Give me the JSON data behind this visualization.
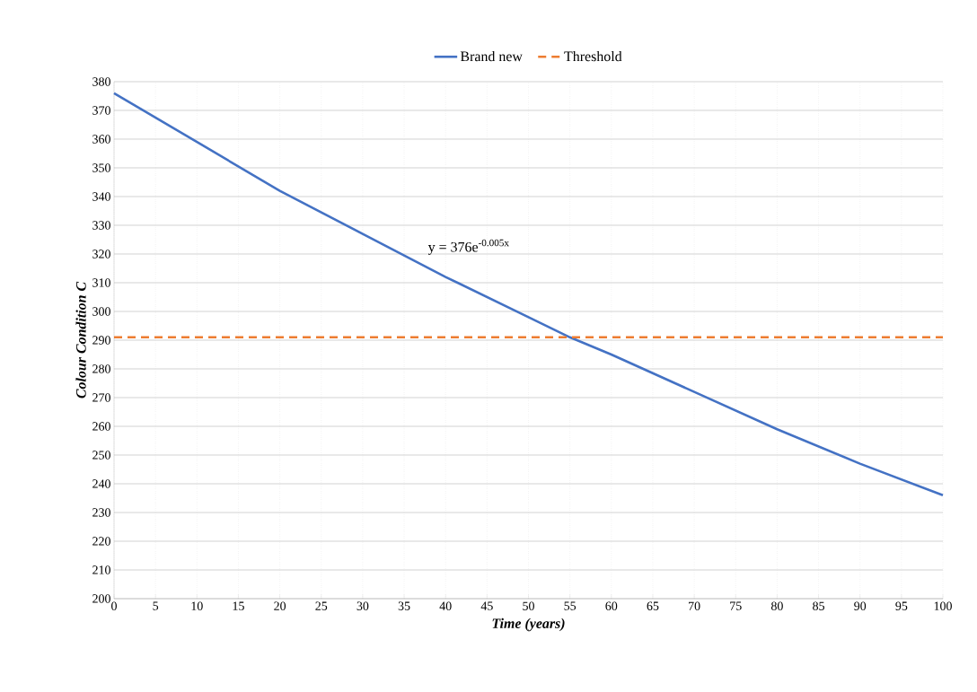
{
  "chart_data": {
    "type": "line",
    "xlabel": "Time (years)",
    "ylabel": "Colour Condition C",
    "annotations": [
      "y = 376e$^{-0.005x}$"
    ],
    "series": [
      {
        "name": "Brand new",
        "color": "#4472c4",
        "x": [
          0,
          10,
          20,
          30,
          40,
          50,
          55,
          60,
          70,
          80,
          90,
          100
        ],
        "values": [
          376,
          359,
          342,
          327,
          312,
          298,
          291,
          285,
          272,
          259,
          247,
          236
        ]
      },
      {
        "name": "Threshold",
        "color": "#ed7d31",
        "line_style": "dashed",
        "x": [
          0,
          100
        ],
        "values": [
          291,
          291
        ]
      }
    ],
    "xlim": [
      0,
      100
    ],
    "xticks": [
      0,
      5,
      10,
      15,
      20,
      25,
      30,
      35,
      40,
      45,
      50,
      55,
      60,
      65,
      70,
      75,
      80,
      85,
      90,
      95,
      100
    ],
    "ylim": [
      200,
      380
    ],
    "yticks": [
      200,
      210,
      220,
      230,
      240,
      250,
      260,
      270,
      280,
      290,
      300,
      310,
      320,
      330,
      340,
      350,
      360,
      370,
      380
    ],
    "grid": true,
    "legend": "top",
    "marker": "none"
  }
}
